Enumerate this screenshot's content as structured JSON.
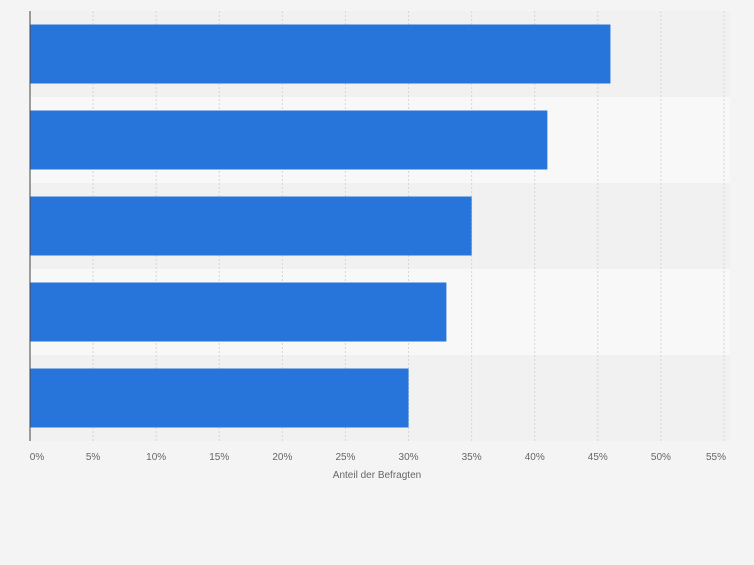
{
  "chart_data": {
    "type": "bar",
    "orientation": "horizontal",
    "categories": [
      "",
      "",
      "",
      "",
      ""
    ],
    "values": [
      46,
      41,
      35,
      33,
      30
    ],
    "xlim": [
      0,
      55
    ],
    "xticks": [
      0,
      5,
      10,
      15,
      20,
      25,
      30,
      35,
      40,
      45,
      50,
      55
    ],
    "tick_labels": [
      "0%",
      "5%",
      "10%",
      "15%",
      "20%",
      "25%",
      "30%",
      "35%",
      "40%",
      "45%",
      "50%",
      "55%"
    ],
    "xlabel": "Anteil der Befragten",
    "ylabel": "",
    "title": "",
    "grid": true,
    "grid_style": "dashed vertical",
    "legend": "none",
    "colors": {
      "bar": "#2775db",
      "band_dark": "#f1f1f1",
      "band_light": "#f8f8f8",
      "grid": "#d6d6d6",
      "axis": "#444444",
      "text": "#666666",
      "background": "#f4f4f4"
    }
  }
}
